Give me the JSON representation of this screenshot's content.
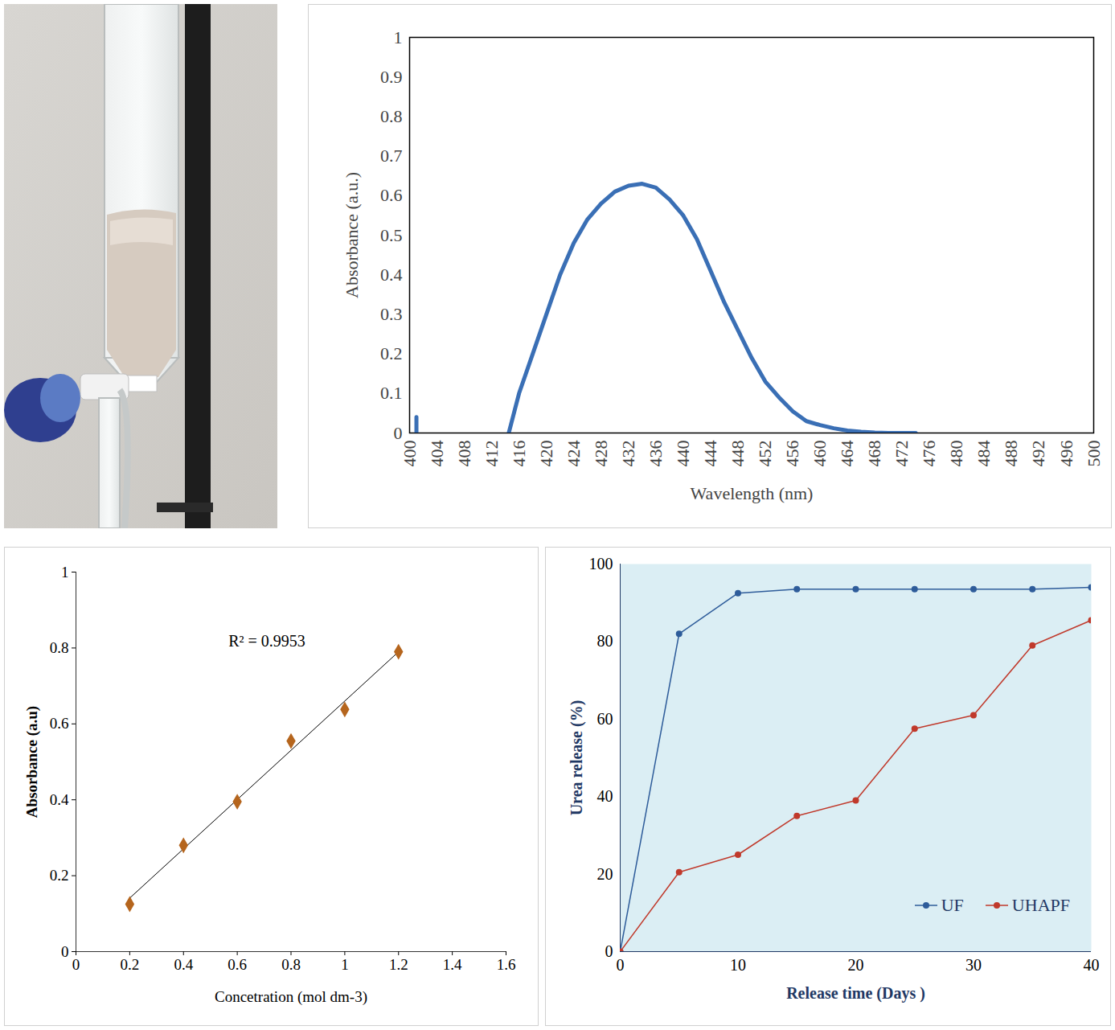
{
  "chart_data": [
    {
      "type": "line",
      "x_label": "Wavelength (nm)",
      "y_label": "Absorbance (a.u.)",
      "xlim": [
        400,
        500
      ],
      "xticks": [
        400,
        404,
        408,
        412,
        416,
        420,
        424,
        428,
        432,
        436,
        440,
        444,
        448,
        452,
        456,
        460,
        464,
        468,
        472,
        476,
        480,
        484,
        488,
        492,
        496,
        500
      ],
      "ylim": [
        0,
        1
      ],
      "yticks": [
        0,
        0.1,
        0.2,
        0.3,
        0.4,
        0.5,
        0.6,
        0.7,
        0.8,
        0.9,
        1
      ],
      "grid": false,
      "color": "#3a6fb5",
      "x": [
        401,
        401,
        414,
        414.5,
        416,
        418,
        420,
        422,
        424,
        426,
        428,
        430,
        432,
        434,
        436,
        438,
        440,
        442,
        444,
        446,
        448,
        450,
        452,
        454,
        456,
        458,
        460,
        462,
        464,
        466,
        468,
        470,
        472,
        474
      ],
      "values": [
        0,
        0.04,
        null,
        0,
        0.1,
        0.2,
        0.3,
        0.4,
        0.48,
        0.54,
        0.58,
        0.61,
        0.625,
        0.63,
        0.62,
        0.59,
        0.55,
        0.49,
        0.41,
        0.33,
        0.26,
        0.19,
        0.13,
        0.09,
        0.055,
        0.03,
        0.02,
        0.012,
        0.006,
        0.003,
        0.001,
        0,
        0,
        0
      ]
    },
    {
      "type": "scatter",
      "x_label": "Concetration (mol dm-3)",
      "y_label": "Absorbance (a.u)",
      "xlim": [
        0,
        1.6
      ],
      "xticks": [
        0,
        0.2,
        0.4,
        0.6,
        0.8,
        1,
        1.2,
        1.4,
        1.6
      ],
      "ylim": [
        0,
        1
      ],
      "yticks": [
        0,
        0.2,
        0.4,
        0.6,
        0.8,
        1
      ],
      "grid": false,
      "color": "#b5651d",
      "marker": "diamond",
      "x": [
        0.2,
        0.4,
        0.6,
        0.8,
        1,
        1.2
      ],
      "values": [
        0.125,
        0.28,
        0.395,
        0.555,
        0.638,
        0.79
      ],
      "trendline": {
        "x": [
          0.2,
          1.2
        ],
        "values": [
          0.141,
          0.79
        ]
      },
      "annotations": [
        {
          "text": "R² = 0.9953"
        }
      ]
    },
    {
      "type": "line",
      "x_label": "Release time (Days )",
      "y_label": "Urea release (%)",
      "xlim": [
        0,
        40
      ],
      "xticks": [
        0,
        10,
        20,
        30,
        40
      ],
      "ylim": [
        0,
        100
      ],
      "yticks": [
        0,
        20,
        40,
        60,
        80,
        100
      ],
      "grid": false,
      "marker": "circle",
      "legend": "lower right",
      "x": [
        0,
        5,
        10,
        15,
        20,
        25,
        30,
        35,
        40
      ],
      "series": [
        {
          "name": "UF",
          "color": "#2e5c9a",
          "values": [
            0,
            82,
            92.5,
            93.5,
            93.5,
            93.5,
            93.5,
            93.5,
            94
          ]
        },
        {
          "name": "UHAPF",
          "color": "#c0392b",
          "values": [
            0,
            20.5,
            25,
            35,
            39,
            57.5,
            61,
            79,
            85.5
          ]
        }
      ]
    }
  ]
}
